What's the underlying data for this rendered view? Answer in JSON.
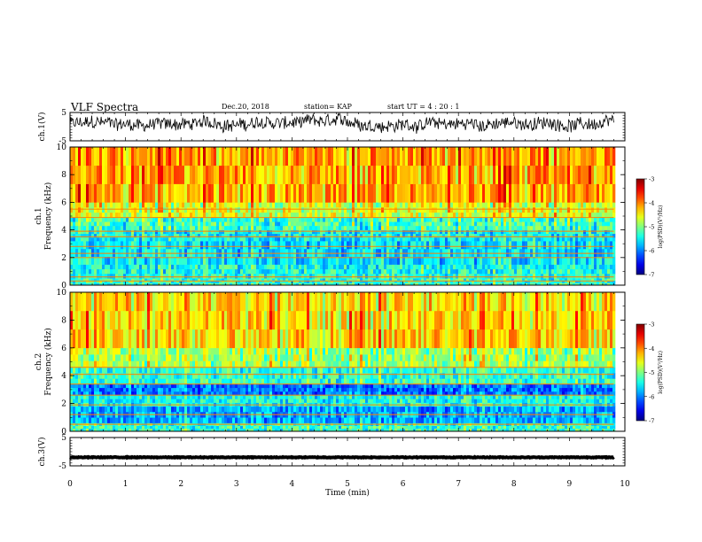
{
  "header": {
    "title": "VLF Spectra",
    "date": "Dec.20, 2018",
    "station": "station= KAP",
    "start": "start  UT =   4 : 20 : 1"
  },
  "chart_data": [
    {
      "type": "line",
      "name": "ch1-waveform",
      "ylabel": "ch.1(V)",
      "ylim": [
        -5,
        5
      ],
      "yticks": [
        "5",
        "-5"
      ],
      "xlim": [
        0,
        10
      ],
      "trace": {
        "level": 1.0,
        "jitter": 2.2
      },
      "color": "#000000"
    },
    {
      "type": "heatmap",
      "name": "ch1-spectrogram",
      "ylabel_line1": "ch.1",
      "ylabel_line2": "Frequency (kHz)",
      "ylim": [
        0,
        10
      ],
      "yticks": [
        "0",
        "2",
        "4",
        "6",
        "8",
        "10"
      ],
      "xlim": [
        0,
        10
      ],
      "data_end_min": 9.8,
      "colorbar": {
        "label": "log(PSD)(V²/Hz)",
        "range": [
          -7,
          -3
        ],
        "ticks": [
          "-3",
          "-4",
          "-5",
          "-6",
          "-7"
        ]
      },
      "bands_log_psd": [
        {
          "f": [
            0,
            0.5
          ],
          "v": -5.3
        },
        {
          "f": [
            0.5,
            1.5
          ],
          "v": -5.4
        },
        {
          "f": [
            1.5,
            3.2
          ],
          "v": -5.6
        },
        {
          "f": [
            3.2,
            4.0
          ],
          "v": -5.5
        },
        {
          "f": [
            4.0,
            4.9
          ],
          "v": -5.2
        },
        {
          "f": [
            4.9,
            6.0
          ],
          "v": -4.6
        },
        {
          "f": [
            6.0,
            10.0
          ],
          "v": -4.1
        }
      ],
      "lines_khz": [
        0.3,
        0.6,
        2.0,
        2.3,
        2.8,
        3.5,
        3.9,
        4.9,
        5.5
      ]
    },
    {
      "type": "heatmap",
      "name": "ch2-spectrogram",
      "ylabel_line1": "ch.2",
      "ylabel_line2": "Frequency (kHz)",
      "ylim": [
        0,
        10
      ],
      "yticks": [
        "0",
        "2",
        "4",
        "6",
        "8",
        "10"
      ],
      "xlim": [
        0,
        10
      ],
      "data_end_min": 9.8,
      "colorbar": {
        "label": "log(PSD)(V²/Hz)",
        "range": [
          -7,
          -3
        ],
        "ticks": [
          "-3",
          "-4",
          "-5",
          "-6",
          "-7"
        ]
      },
      "bands_log_psd": [
        {
          "f": [
            0,
            0.6
          ],
          "v": -5.3
        },
        {
          "f": [
            0.6,
            1.8
          ],
          "v": -5.8
        },
        {
          "f": [
            1.8,
            2.6
          ],
          "v": -5.4
        },
        {
          "f": [
            2.6,
            3.4
          ],
          "v": -6.0
        },
        {
          "f": [
            3.4,
            4.6
          ],
          "v": -5.3
        },
        {
          "f": [
            4.6,
            6.0
          ],
          "v": -4.8
        },
        {
          "f": [
            6.0,
            10.0
          ],
          "v": -4.3
        }
      ],
      "lines_khz": [
        0.5,
        1.2,
        1.9,
        2.6,
        3.4,
        4.1,
        4.6
      ]
    },
    {
      "type": "line",
      "name": "ch3-waveform",
      "ylabel": "ch.3(V)",
      "ylim": [
        -5,
        5
      ],
      "yticks": [
        "5",
        "-5"
      ],
      "xlim": [
        0,
        10
      ],
      "trace": {
        "level": -2.0,
        "jitter": 0.25
      },
      "color": "#000000"
    }
  ],
  "xaxis": {
    "label": "Time (min)",
    "ticks": [
      "0",
      "1",
      "2",
      "3",
      "4",
      "5",
      "6",
      "7",
      "8",
      "9",
      "10"
    ],
    "range": [
      0,
      10
    ]
  }
}
